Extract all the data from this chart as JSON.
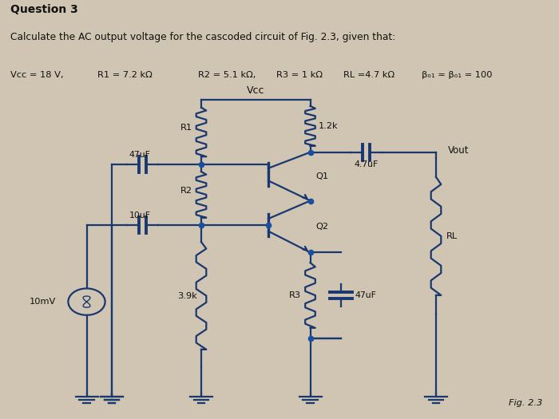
{
  "title_question": "Question 3",
  "subtitle": "Calculate the AC output voltage for the cascoded circuit of Fig. 2.3, given that:",
  "bg_color": "#cfc5b2",
  "header_bg": "#cfc5b2",
  "line_color": "#1a3870",
  "dot_color": "#1a4fa0",
  "text_color": "#111111",
  "lw": 1.6,
  "fig_label": "Fig. 2.3",
  "param_vcc": "Vcc = 18 V,",
  "param_r1": "R1 = 7.2 kΩ",
  "param_r2": "R2 = 5.1 kΩ,",
  "param_r3": "R3 = 1 kΩ",
  "param_rl": "RL =4.7 kΩ",
  "param_beta": "βₒ₁ = βₒ₁ = 100"
}
